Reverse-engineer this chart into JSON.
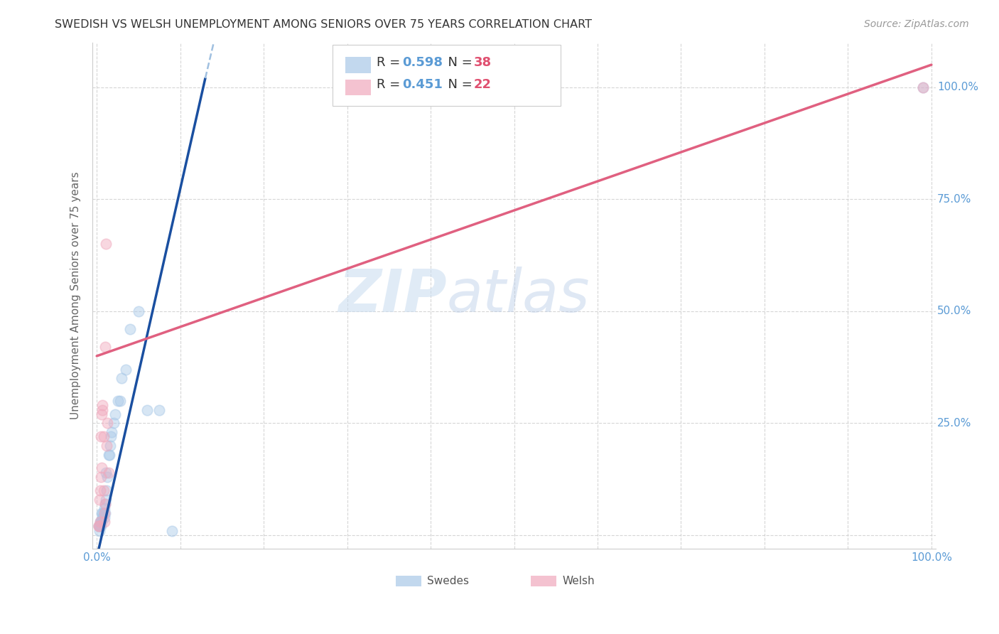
{
  "title": "SWEDISH VS WELSH UNEMPLOYMENT AMONG SENIORS OVER 75 YEARS CORRELATION CHART",
  "source": "Source: ZipAtlas.com",
  "ylabel": "Unemployment Among Seniors over 75 years",
  "watermark_zip": "ZIP",
  "watermark_atlas": "atlas",
  "blue_color": "#a8c8e8",
  "pink_color": "#f0a8bc",
  "blue_line_color": "#1a4fa0",
  "pink_line_color": "#e06080",
  "blue_dash_color": "#a0c0e0",
  "swedes_scatter_x": [
    0.002,
    0.003,
    0.003,
    0.004,
    0.004,
    0.005,
    0.005,
    0.005,
    0.006,
    0.006,
    0.007,
    0.007,
    0.008,
    0.009,
    0.009,
    0.01,
    0.01,
    0.011,
    0.011,
    0.012,
    0.013,
    0.014,
    0.015,
    0.016,
    0.017,
    0.018,
    0.02,
    0.022,
    0.025,
    0.028,
    0.03,
    0.035,
    0.04,
    0.05,
    0.06,
    0.075,
    0.09,
    0.99
  ],
  "swedes_scatter_y": [
    0.02,
    0.01,
    0.02,
    0.02,
    0.03,
    0.02,
    0.03,
    0.03,
    0.03,
    0.05,
    0.04,
    0.05,
    0.05,
    0.04,
    0.06,
    0.05,
    0.07,
    0.08,
    0.14,
    0.1,
    0.13,
    0.18,
    0.18,
    0.2,
    0.22,
    0.23,
    0.25,
    0.27,
    0.3,
    0.3,
    0.35,
    0.37,
    0.46,
    0.5,
    0.28,
    0.28,
    0.01,
    1.0
  ],
  "welsh_scatter_x": [
    0.002,
    0.002,
    0.003,
    0.004,
    0.004,
    0.005,
    0.005,
    0.006,
    0.006,
    0.007,
    0.007,
    0.008,
    0.008,
    0.009,
    0.009,
    0.01,
    0.01,
    0.011,
    0.012,
    0.013,
    0.014,
    0.99
  ],
  "welsh_scatter_y": [
    0.02,
    0.02,
    0.08,
    0.03,
    0.1,
    0.13,
    0.22,
    0.15,
    0.27,
    0.28,
    0.29,
    0.1,
    0.22,
    0.03,
    0.05,
    0.07,
    0.42,
    0.65,
    0.2,
    0.25,
    0.14,
    1.0
  ],
  "blue_trend": {
    "x": [
      0.0,
      0.13
    ],
    "y": [
      -0.05,
      1.02
    ]
  },
  "blue_dash": {
    "x": [
      0.13,
      0.28
    ],
    "y": [
      1.02,
      2.2
    ]
  },
  "pink_trend": {
    "x": [
      0.0,
      1.0
    ],
    "y": [
      0.4,
      1.05
    ]
  },
  "xlim": [
    -0.005,
    1.005
  ],
  "ylim": [
    -0.03,
    1.1
  ],
  "xtick_positions": [
    0.0,
    0.1,
    0.2,
    0.3,
    0.4,
    0.5,
    0.6,
    0.7,
    0.8,
    0.9,
    1.0
  ],
  "ytick_positions": [
    0.0,
    0.25,
    0.5,
    0.75,
    1.0
  ],
  "ytick_labels": [
    "",
    "25.0%",
    "50.0%",
    "75.0%",
    "100.0%"
  ],
  "marker_size": 110,
  "marker_alpha": 0.45,
  "background_color": "#ffffff",
  "grid_color": "#cccccc",
  "title_color": "#333333",
  "source_color": "#999999",
  "axis_tick_color": "#5b9bd5",
  "legend_r_color": "#5b9bd5",
  "legend_n_color": "#e05070",
  "legend_blue_r": "0.598",
  "legend_blue_n": "38",
  "legend_pink_r": "0.451",
  "legend_pink_n": "22"
}
